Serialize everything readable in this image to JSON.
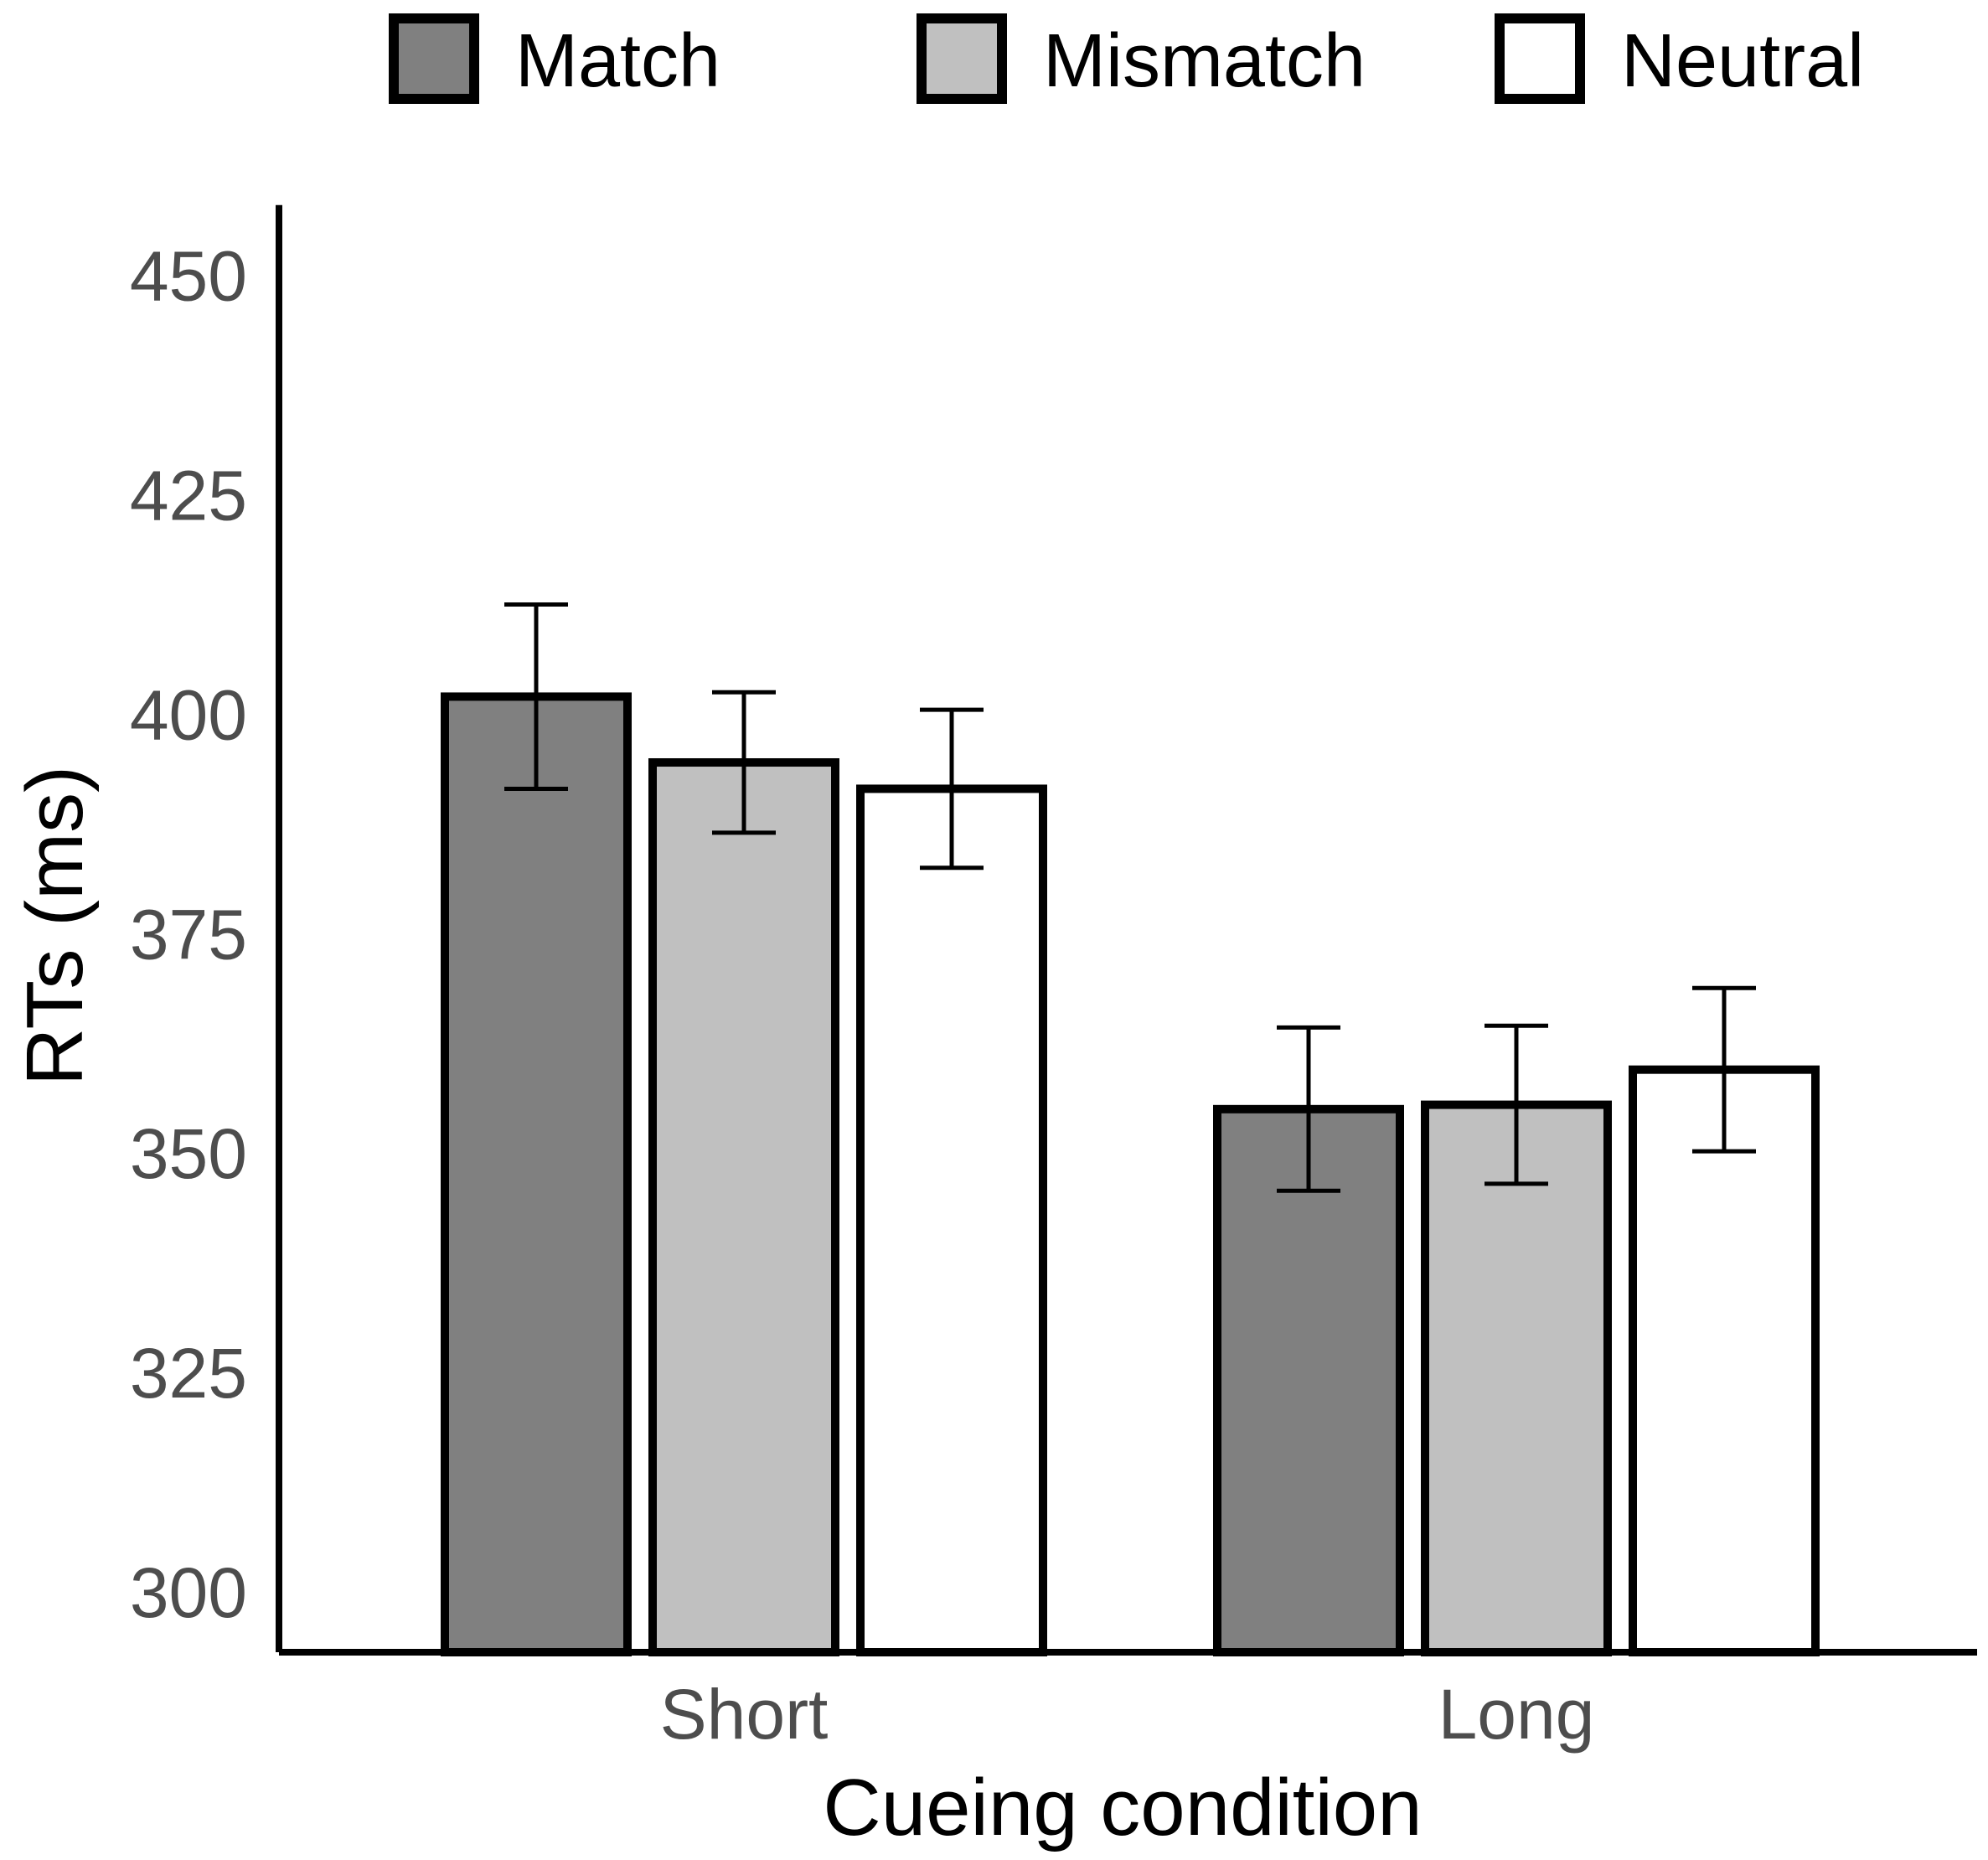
{
  "chart_data": {
    "type": "bar",
    "title": "",
    "xlabel": "Cueing condition",
    "ylabel": "RTs (ms)",
    "categories": [
      "Short",
      "Long"
    ],
    "ylim": [
      295,
      458
    ],
    "yticks": [
      300,
      325,
      350,
      375,
      400,
      425,
      450
    ],
    "ytick_labels": [
      "300",
      "325",
      "350",
      "375",
      "400",
      "425",
      "450"
    ],
    "grid": false,
    "legend_position": "top",
    "series": [
      {
        "name": "Match",
        "color": "#808080",
        "values": [
          402,
          355
        ],
        "error": [
          10.5,
          9.3
        ]
      },
      {
        "name": "Mismatch",
        "color": "#c0c0c0",
        "values": [
          394.5,
          355.5
        ],
        "error": [
          8.0,
          9.0
        ]
      },
      {
        "name": "Neutral",
        "color": "#ffffff",
        "values": [
          391.5,
          359.5
        ],
        "error": [
          9.0,
          9.3
        ]
      }
    ]
  }
}
